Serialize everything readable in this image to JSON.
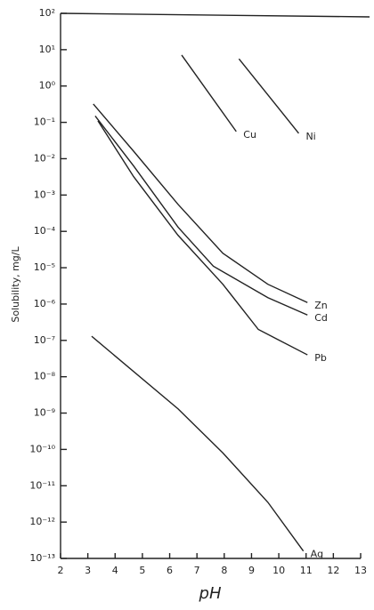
{
  "chart_data": {
    "type": "line",
    "x_label": "pH",
    "y_label": "Solubility, mg/L",
    "log_y": true,
    "xlim": [
      2,
      13
    ],
    "xticks": [
      2,
      3,
      4,
      5,
      6,
      7,
      8,
      9,
      10,
      11,
      12,
      13
    ],
    "ylim": [
      1e-13,
      100
    ],
    "yticks": [
      {
        "value": 100,
        "label": "10²"
      },
      {
        "value": 10,
        "label": "10¹"
      },
      {
        "value": 1,
        "label": "10⁰"
      },
      {
        "value": 0.1,
        "label": "10⁻¹"
      },
      {
        "value": 0.01,
        "label": "10⁻²"
      },
      {
        "value": 0.001,
        "label": "10⁻³"
      },
      {
        "value": 0.0001,
        "label": "10⁻⁴"
      },
      {
        "value": 1e-05,
        "label": "10⁻⁵"
      },
      {
        "value": 1e-06,
        "label": "10⁻⁶"
      },
      {
        "value": 1e-07,
        "label": "10⁻⁷"
      },
      {
        "value": 1e-08,
        "label": "10⁻⁸"
      },
      {
        "value": 1e-09,
        "label": "10⁻⁹"
      },
      {
        "value": 1e-10,
        "label": "10⁻¹⁰"
      },
      {
        "value": 1e-11,
        "label": "10⁻¹¹"
      },
      {
        "value": 1e-12,
        "label": "10⁻¹²"
      },
      {
        "value": 1e-13,
        "label": "10⁻¹³"
      }
    ],
    "series": [
      {
        "name": "Cu",
        "color": "#222",
        "x": [
          6.44,
          8.44
        ],
        "values": [
          7.1,
          0.056
        ]
      },
      {
        "name": "Ni",
        "color": "#222",
        "x": [
          8.54,
          10.73
        ],
        "values": [
          5.6,
          0.05
        ]
      },
      {
        "name": "Zn",
        "color": "#222",
        "x": [
          3.2,
          4.68,
          6.31,
          7.95,
          9.6,
          11.05
        ],
        "values": [
          0.32,
          0.016,
          0.00055,
          2.5e-05,
          3.5e-06,
          1.1e-06
        ]
      },
      {
        "name": "Cd",
        "color": "#222",
        "x": [
          3.27,
          4.68,
          6.31,
          7.6,
          9.6,
          11.05
        ],
        "values": [
          0.15,
          0.0063,
          0.00013,
          1.1e-05,
          1.5e-06,
          5e-07
        ]
      },
      {
        "name": "Pb",
        "color": "#222",
        "x": [
          3.37,
          4.68,
          6.3,
          7.95,
          9.25,
          11.05
        ],
        "values": [
          0.11,
          0.0032,
          7.9e-05,
          3.5e-06,
          2e-07,
          4e-08
        ]
      },
      {
        "name": "Ag",
        "color": "#222",
        "x": [
          3.14,
          6.31,
          7.95,
          9.6,
          10.9
        ],
        "values": [
          1.3e-07,
          1.3e-09,
          8e-11,
          3.5e-12,
          1.6e-13
        ]
      }
    ]
  }
}
